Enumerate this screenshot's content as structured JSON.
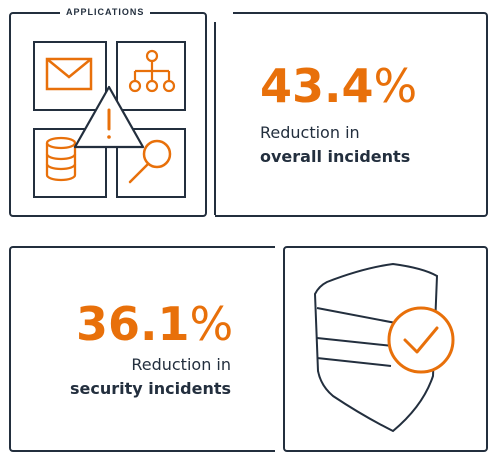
{
  "applications_panel": {
    "label": "APPLICATIONS",
    "icons": [
      "mail-icon",
      "org-chart-icon",
      "database-icon",
      "magnifier-icon",
      "warning-icon"
    ]
  },
  "stat_overall": {
    "value": "43.4",
    "unit": "%",
    "line1": "Reduction in",
    "line2": "overall incidents"
  },
  "stat_security": {
    "value": "36.1",
    "unit": "%",
    "line1": "Reduction in",
    "line2": "security incidents"
  },
  "security_panel": {
    "icons": [
      "shield-icon",
      "checkmark-circle-icon"
    ]
  },
  "colors": {
    "accent": "#e8700a",
    "ink": "#232f3e"
  }
}
